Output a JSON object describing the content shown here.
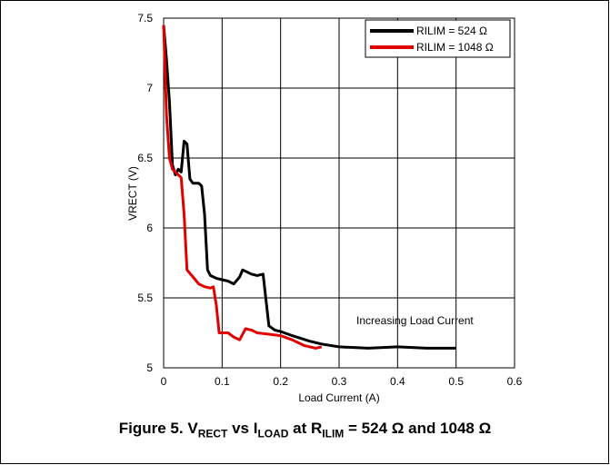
{
  "chart_data": {
    "type": "line",
    "xlabel": "Load Current (A)",
    "ylabel": "VRECT (V)",
    "xlim": [
      0,
      0.6
    ],
    "ylim": [
      5,
      7.5
    ],
    "xticks": [
      "0",
      "0.1",
      "0.2",
      "0.3",
      "0.4",
      "0.5",
      "0.6"
    ],
    "yticks": [
      "5",
      "5.5",
      "6",
      "6.5",
      "7",
      "7.5"
    ],
    "grid": true,
    "legend_position": "top-right",
    "annotation": "Increasing Load Current",
    "series": [
      {
        "name": "RILIM = 524 Ω",
        "color": "#000000",
        "x": [
          0,
          0.005,
          0.01,
          0.015,
          0.02,
          0.025,
          0.03,
          0.035,
          0.04,
          0.045,
          0.05,
          0.06,
          0.065,
          0.07,
          0.075,
          0.08,
          0.09,
          0.1,
          0.11,
          0.12,
          0.13,
          0.135,
          0.14,
          0.15,
          0.16,
          0.17,
          0.18,
          0.19,
          0.2,
          0.22,
          0.25,
          0.27,
          0.3,
          0.35,
          0.4,
          0.45,
          0.5
        ],
        "y": [
          7.45,
          7.2,
          6.9,
          6.45,
          6.38,
          6.42,
          6.4,
          6.62,
          6.6,
          6.35,
          6.32,
          6.32,
          6.3,
          6.1,
          5.7,
          5.66,
          5.64,
          5.63,
          5.62,
          5.6,
          5.65,
          5.7,
          5.69,
          5.67,
          5.66,
          5.67,
          5.3,
          5.27,
          5.26,
          5.23,
          5.19,
          5.17,
          5.15,
          5.14,
          5.15,
          5.14,
          5.14
        ]
      },
      {
        "name": "RILIM = 1048 Ω",
        "color": "#e00000",
        "x": [
          0,
          0.005,
          0.01,
          0.015,
          0.02,
          0.025,
          0.03,
          0.035,
          0.04,
          0.05,
          0.06,
          0.07,
          0.08,
          0.085,
          0.09,
          0.095,
          0.1,
          0.11,
          0.12,
          0.13,
          0.14,
          0.15,
          0.16,
          0.18,
          0.2,
          0.22,
          0.24,
          0.26,
          0.27
        ],
        "y": [
          7.45,
          6.8,
          6.5,
          6.42,
          6.4,
          6.38,
          6.36,
          6.1,
          5.7,
          5.65,
          5.6,
          5.58,
          5.57,
          5.58,
          5.45,
          5.25,
          5.25,
          5.25,
          5.22,
          5.2,
          5.28,
          5.27,
          5.25,
          5.24,
          5.23,
          5.2,
          5.16,
          5.14,
          5.15
        ]
      }
    ]
  },
  "caption": {
    "prefix": "Figure 5. V",
    "sub1": "RECT",
    "mid1": " vs I",
    "sub2": "LOAD",
    "mid2": " at R",
    "sub3": "ILIM",
    "suffix": " = 524 Ω and 1048 Ω"
  }
}
